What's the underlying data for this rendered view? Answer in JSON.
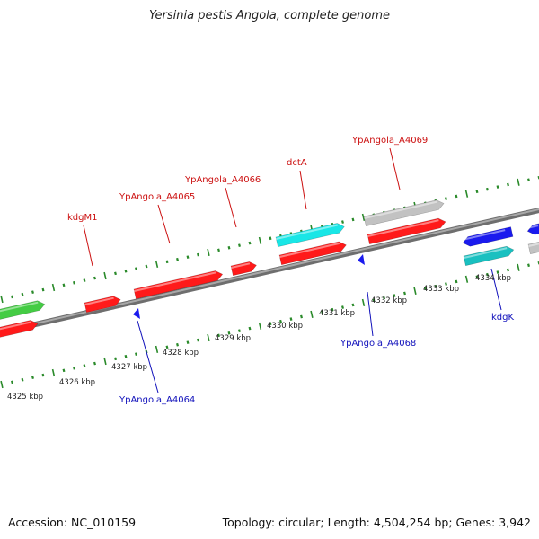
{
  "title": "Yersinia pestis Angola, complete genome",
  "footer": {
    "accession": "Accession: NC_010159",
    "summary": "Topology: circular; Length: 4,504,254 bp; Genes: 3,942"
  },
  "colors": {
    "backbone": "#8a8a8a",
    "tick": "#2a8a2a",
    "forward_label": "#cc1111",
    "reverse_label": "#1111bb",
    "scale_label": "#222222",
    "feature_colors": [
      "#ff1a1a",
      "#19e6e6",
      "#c2c2c2",
      "#44cc44",
      "#1a1aee",
      "#19c0c0"
    ]
  },
  "scale_ticks": [
    {
      "label": "4325 kbp"
    },
    {
      "label": "4326 kbp"
    },
    {
      "label": "4327 kbp"
    },
    {
      "label": "4328 kbp"
    },
    {
      "label": "4329 kbp"
    },
    {
      "label": "4330 kbp"
    },
    {
      "label": "4331 kbp"
    },
    {
      "label": "4332 kbp"
    },
    {
      "label": "4333 kbp"
    },
    {
      "label": "4334 kbp"
    }
  ],
  "forward_labels": [
    {
      "text": "kdgM1"
    },
    {
      "text": "YpAngola_A4065"
    },
    {
      "text": "YpAngola_A4066"
    },
    {
      "text": "dctA"
    },
    {
      "text": "YpAngola_A4069"
    }
  ],
  "reverse_labels": [
    {
      "text": "YpAngola_A4064"
    },
    {
      "text": "YpAngola_A4068"
    },
    {
      "text": "kdgK"
    }
  ]
}
